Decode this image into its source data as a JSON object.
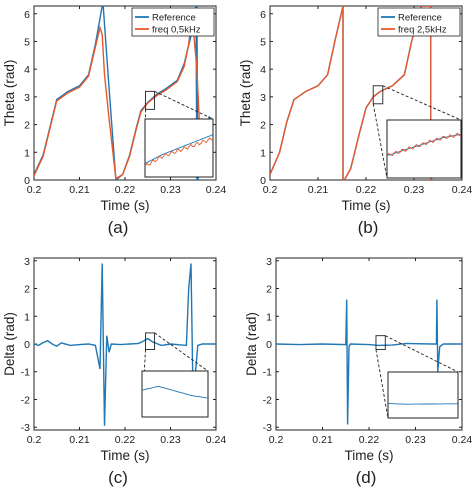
{
  "colors": {
    "reference": "#1f77b4",
    "measured": "#e8582b",
    "axis": "#222222"
  },
  "chart_data": [
    {
      "type": "line",
      "panel_label": "(a)",
      "xlabel": "Time (s)",
      "ylabel": "Theta (rad)",
      "xlim": [
        0.2,
        0.24
      ],
      "ylim": [
        0,
        6.28
      ],
      "xticks": [
        "0.2",
        "0.21",
        "0.22",
        "0.23",
        "0.24"
      ],
      "yticks": [
        "0",
        "1",
        "2",
        "3",
        "4",
        "5",
        "6"
      ],
      "legend": {
        "position": "top-right"
      },
      "series": [
        {
          "name": "Reference",
          "x": [
            0.2,
            0.202,
            0.2035,
            0.205,
            0.2075,
            0.21,
            0.212,
            0.2135,
            0.215,
            0.2152,
            0.2165,
            0.218,
            0.2195,
            0.221,
            0.2225,
            0.2235,
            0.225,
            0.227,
            0.229,
            0.2315,
            0.233,
            0.2345,
            0.2356,
            0.2358,
            0.2358,
            0.236,
            0.2375,
            0.2385
          ],
          "y": [
            0.2,
            0.9,
            1.9,
            2.9,
            3.2,
            3.4,
            3.8,
            4.9,
            6.28,
            6.28,
            3.3,
            0.0,
            0.2,
            0.9,
            1.9,
            2.5,
            2.8,
            3.1,
            3.3,
            3.6,
            4.2,
            5.2,
            6.28,
            0.0,
            6.28,
            0.0,
            1.3,
            2.3
          ]
        },
        {
          "name": "freq 0,5kHz",
          "x": [
            0.2,
            0.202,
            0.2035,
            0.205,
            0.2075,
            0.21,
            0.212,
            0.2135,
            0.2145,
            0.215,
            0.2155,
            0.2165,
            0.218,
            0.2195,
            0.221,
            0.2225,
            0.2235,
            0.225,
            0.227,
            0.229,
            0.2315,
            0.233,
            0.234,
            0.2345,
            0.235,
            0.2358,
            0.2365,
            0.2375,
            0.2385
          ],
          "y": [
            0.15,
            0.85,
            1.85,
            2.85,
            3.15,
            3.35,
            3.75,
            4.8,
            5.5,
            5.25,
            3.8,
            2.2,
            0.05,
            0.2,
            0.85,
            1.85,
            2.45,
            2.78,
            3.05,
            3.25,
            3.55,
            4.1,
            4.9,
            5.7,
            5.5,
            4.0,
            1.5,
            1.2,
            2.2
          ]
        }
      ],
      "inset": {
        "zoom_x": [
          0.2245,
          0.2265
        ],
        "zoom_y": [
          2.55,
          3.2
        ],
        "border": "#222222",
        "background": "#ffffff"
      }
    },
    {
      "type": "line",
      "panel_label": "(b)",
      "xlabel": "Time (s)",
      "ylabel": "Theta (rad)",
      "xlim": [
        0.2,
        0.24
      ],
      "ylim": [
        0,
        6.28
      ],
      "xticks": [
        "0.2",
        "0.21",
        "0.22",
        "0.23",
        "0.24"
      ],
      "yticks": [
        "0",
        "1",
        "2",
        "3",
        "4",
        "5",
        "6"
      ],
      "legend": {
        "position": "top-right"
      },
      "series": [
        {
          "name": "Reference",
          "x": [
            0.2,
            0.202,
            0.2035,
            0.205,
            0.2075,
            0.21,
            0.212,
            0.2135,
            0.2152,
            0.2152,
            0.2155,
            0.2168,
            0.2185,
            0.22,
            0.2215,
            0.223,
            0.2255,
            0.228,
            0.2295,
            0.2315,
            0.2335,
            0.2335,
            0.2352,
            0.2365,
            0.2375
          ],
          "y": [
            0.2,
            1.0,
            2.1,
            2.9,
            3.2,
            3.4,
            3.8,
            5.0,
            6.28,
            0.0,
            0.0,
            0.4,
            1.6,
            2.6,
            3.0,
            3.2,
            3.4,
            3.8,
            5.0,
            6.28,
            6.28,
            0.0,
            0.5,
            1.5,
            2.1
          ]
        },
        {
          "name": "freq 2,5kHz",
          "x": [
            0.2,
            0.202,
            0.2035,
            0.205,
            0.2075,
            0.21,
            0.212,
            0.2135,
            0.2152,
            0.2152,
            0.2155,
            0.2168,
            0.2185,
            0.22,
            0.2215,
            0.223,
            0.2255,
            0.228,
            0.2295,
            0.2315,
            0.2335,
            0.2335,
            0.2352,
            0.2365,
            0.2375
          ],
          "y": [
            0.2,
            1.0,
            2.1,
            2.9,
            3.2,
            3.4,
            3.8,
            5.0,
            6.28,
            0.0,
            0.0,
            0.4,
            1.6,
            2.6,
            3.0,
            3.2,
            3.4,
            3.8,
            5.0,
            6.28,
            6.28,
            0.0,
            0.5,
            1.5,
            2.1
          ]
        }
      ],
      "inset": {
        "zoom_x": [
          0.2215,
          0.2235
        ],
        "zoom_y": [
          2.75,
          3.4
        ],
        "border": "#222222",
        "background": "#ffffff"
      }
    },
    {
      "type": "line",
      "panel_label": "(c)",
      "xlabel": "Time (s)",
      "ylabel": "Delta (rad)",
      "xlim": [
        0.2,
        0.24
      ],
      "ylim": [
        -3.1,
        3.1
      ],
      "xticks": [
        "0.2",
        "0.21",
        "0.22",
        "0.23",
        "0.24"
      ],
      "yticks": [
        "-3",
        "-2",
        "-1",
        "0",
        "1",
        "2",
        "3"
      ],
      "series": [
        {
          "name": "",
          "x": [
            0.2,
            0.201,
            0.202,
            0.203,
            0.204,
            0.205,
            0.206,
            0.208,
            0.21,
            0.212,
            0.2135,
            0.2145,
            0.215,
            0.2155,
            0.216,
            0.2165,
            0.217,
            0.219,
            0.221,
            0.223,
            0.224,
            0.225,
            0.226,
            0.228,
            0.23,
            0.232,
            0.2335,
            0.234,
            0.2345,
            0.235,
            0.2355,
            0.236,
            0.237,
            0.239,
            0.24
          ],
          "y": [
            0.0,
            -0.05,
            0.05,
            0.12,
            0.0,
            -0.08,
            0.04,
            -0.05,
            -0.02,
            0.0,
            -0.05,
            -0.9,
            2.9,
            -2.95,
            0.3,
            -0.3,
            0.0,
            -0.02,
            0.0,
            0.02,
            0.1,
            0.2,
            0.08,
            -0.05,
            0.0,
            -0.03,
            -0.05,
            2.0,
            2.9,
            -2.3,
            -1.0,
            -0.05,
            0.0,
            0.0,
            0.0
          ]
        }
      ],
      "inset": {
        "zoom_x": [
          0.2245,
          0.2265
        ],
        "zoom_y": [
          -0.2,
          0.4
        ],
        "border": "#222222",
        "background": "#ffffff"
      }
    },
    {
      "type": "line",
      "panel_label": "(d)",
      "xlabel": "Time (s)",
      "ylabel": "Delta (rad)",
      "xlim": [
        0.2,
        0.24
      ],
      "ylim": [
        -3.1,
        3.1
      ],
      "xticks": [
        "0.2",
        "0.21",
        "0.22",
        "0.23",
        "0.24"
      ],
      "yticks": [
        "-3",
        "-2",
        "-1",
        "0",
        "1",
        "2",
        "3"
      ],
      "series": [
        {
          "name": "",
          "x": [
            0.2,
            0.205,
            0.21,
            0.215,
            0.2152,
            0.2154,
            0.2157,
            0.216,
            0.22,
            0.222,
            0.225,
            0.228,
            0.23,
            0.2335,
            0.2345,
            0.2346,
            0.2348,
            0.2352,
            0.236,
            0.238,
            0.24
          ],
          "y": [
            0.0,
            -0.02,
            0.0,
            -0.02,
            1.6,
            -2.9,
            -0.1,
            0.0,
            -0.02,
            -0.05,
            -0.04,
            0.02,
            0.01,
            0.0,
            0.0,
            1.6,
            -1.0,
            -0.1,
            0.0,
            0.0,
            0.0
          ]
        }
      ],
      "inset": {
        "zoom_x": [
          0.2215,
          0.2235
        ],
        "zoom_y": [
          -0.2,
          0.3
        ],
        "border": "#222222",
        "background": "#ffffff"
      }
    }
  ]
}
